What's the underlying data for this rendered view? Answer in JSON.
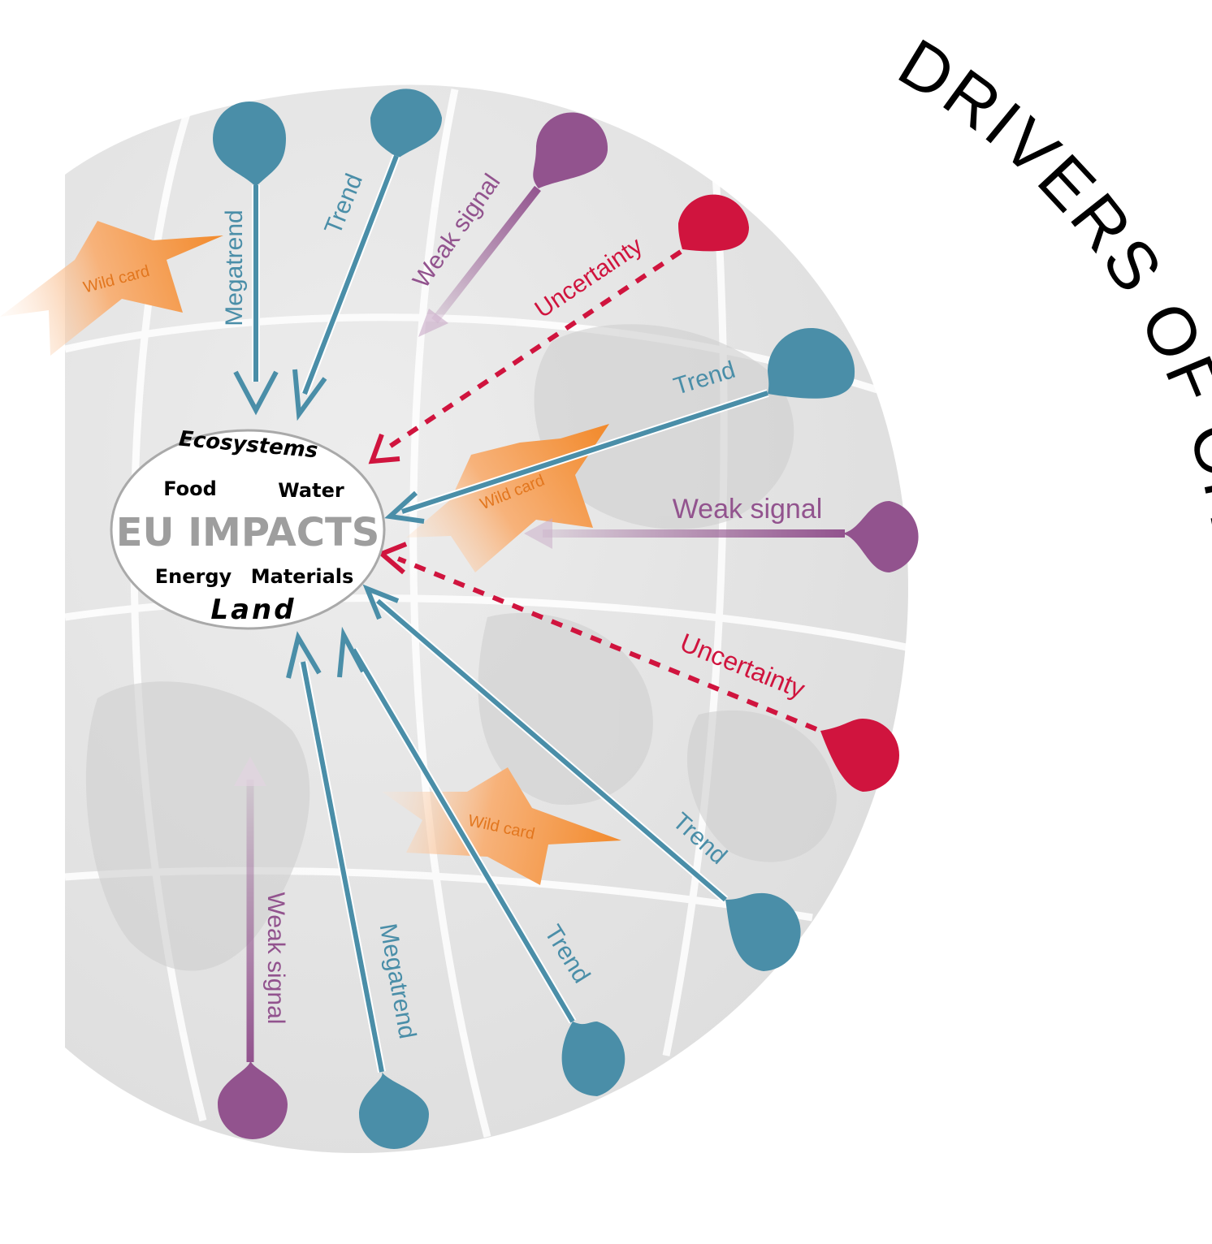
{
  "title": "DRIVERS OF CHANGE",
  "center": {
    "main": "EU IMPACTS",
    "ecosystems": "Ecosystems",
    "food": "Food",
    "water": "Water",
    "energy": "Energy",
    "materials": "Materials",
    "land": "Land"
  },
  "drivers": [
    {
      "id": "megatrend-top",
      "label": "Megatrend",
      "kind": "megatrend"
    },
    {
      "id": "trend-top",
      "label": "Trend",
      "kind": "trend"
    },
    {
      "id": "weak-signal-top",
      "label": "Weak signal",
      "kind": "weak"
    },
    {
      "id": "uncertainty-top",
      "label": "Uncertainty",
      "kind": "uncertainty"
    },
    {
      "id": "trend-right",
      "label": "Trend",
      "kind": "trend"
    },
    {
      "id": "weak-signal-right",
      "label": "Weak signal",
      "kind": "weak"
    },
    {
      "id": "uncertainty-right",
      "label": "Uncertainty",
      "kind": "uncertainty"
    },
    {
      "id": "trend-lower-right",
      "label": "Trend",
      "kind": "trend"
    },
    {
      "id": "trend-bottom",
      "label": "Trend",
      "kind": "trend"
    },
    {
      "id": "megatrend-bottom",
      "label": "Megatrend",
      "kind": "megatrend"
    },
    {
      "id": "weak-signal-bottom",
      "label": "Weak signal",
      "kind": "weak"
    }
  ],
  "wild_cards": [
    {
      "id": "wild-card-top-left",
      "label": "Wild card"
    },
    {
      "id": "wild-card-middle",
      "label": "Wild card"
    },
    {
      "id": "wild-card-bottom",
      "label": "Wild card"
    }
  ],
  "colors": {
    "trend": "#4a8ea8",
    "weak": "#92538e",
    "uncertainty": "#d0143e",
    "wildcard": "#f39a4a",
    "globe": "#e6e6e6",
    "title": "#000000"
  }
}
